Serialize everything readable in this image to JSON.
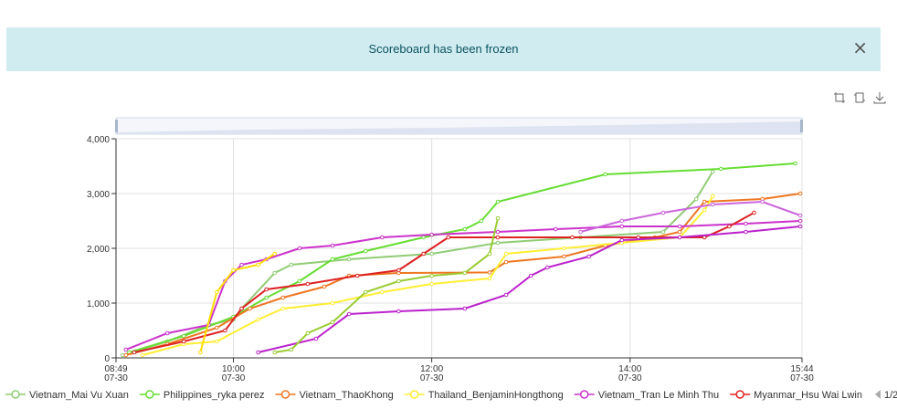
{
  "alert": {
    "message": "Scoreboard has been frozen",
    "close_glyph": "×"
  },
  "toolbox": {
    "icons": [
      "zoom-icon",
      "zoom-reset-icon",
      "download-icon"
    ]
  },
  "legend": {
    "page": "1/2"
  },
  "chart_data": {
    "type": "line",
    "xlabel": "",
    "ylabel": "",
    "ylim": [
      0,
      4000
    ],
    "xlim": [
      "07-30 08:49",
      "07-30 15:44"
    ],
    "x_ticks": [
      {
        "time": "08:49",
        "date": "07-30"
      },
      {
        "time": "10:00",
        "date": "07-30"
      },
      {
        "time": "12:00",
        "date": "07-30"
      },
      {
        "time": "14:00",
        "date": "07-30"
      },
      {
        "time": "15:44",
        "date": "07-30"
      }
    ],
    "y_ticks": [
      "0",
      "1,000",
      "2,000",
      "3,000",
      "4,000"
    ],
    "grid": true,
    "legend_position": "bottom",
    "series": [
      {
        "name": "Vietnam_Mai Vu Xuan",
        "color": "#91cc75",
        "points": [
          [
            "08:53",
            50
          ],
          [
            "09:20",
            300
          ],
          [
            "09:45",
            600
          ],
          [
            "10:00",
            700
          ],
          [
            "10:05",
            900
          ],
          [
            "10:25",
            1550
          ],
          [
            "10:35",
            1700
          ],
          [
            "11:10",
            1800
          ],
          [
            "12:00",
            1900
          ],
          [
            "12:40",
            2100
          ],
          [
            "13:30",
            2200
          ],
          [
            "14:20",
            2300
          ],
          [
            "14:40",
            2900
          ],
          [
            "14:50",
            3400
          ]
        ]
      },
      {
        "name": "Philippines_ryka perez",
        "color": "#66dd33",
        "points": [
          [
            "08:57",
            100
          ],
          [
            "09:30",
            400
          ],
          [
            "10:00",
            750
          ],
          [
            "10:20",
            1100
          ],
          [
            "10:40",
            1400
          ],
          [
            "11:00",
            1800
          ],
          [
            "11:20",
            1950
          ],
          [
            "11:55",
            2200
          ],
          [
            "12:20",
            2350
          ],
          [
            "12:30",
            2500
          ],
          [
            "12:40",
            2850
          ],
          [
            "13:45",
            3350
          ],
          [
            "14:55",
            3450
          ],
          [
            "15:40",
            3550
          ]
        ]
      },
      {
        "name": "Vietnam_ThaoKhong",
        "color": "#ee7722",
        "points": [
          [
            "08:55",
            50
          ],
          [
            "09:20",
            250
          ],
          [
            "09:50",
            550
          ],
          [
            "10:10",
            900
          ],
          [
            "10:30",
            1100
          ],
          [
            "10:55",
            1300
          ],
          [
            "11:10",
            1500
          ],
          [
            "11:40",
            1550
          ],
          [
            "12:35",
            1560
          ],
          [
            "12:45",
            1750
          ],
          [
            "13:20",
            1850
          ],
          [
            "13:45",
            2050
          ],
          [
            "14:15",
            2200
          ],
          [
            "14:30",
            2300
          ],
          [
            "14:45",
            2850
          ],
          [
            "15:20",
            2900
          ],
          [
            "15:43",
            3000
          ]
        ]
      },
      {
        "name": "Thailand_BenjaminHongthong",
        "color": "#ffee33",
        "points": [
          [
            "09:05",
            50
          ],
          [
            "09:30",
            250
          ],
          [
            "09:50",
            300
          ],
          [
            "10:15",
            700
          ],
          [
            "10:30",
            900
          ],
          [
            "11:00",
            1000
          ],
          [
            "11:30",
            1200
          ],
          [
            "12:00",
            1350
          ],
          [
            "12:35",
            1450
          ],
          [
            "12:45",
            1900
          ],
          [
            "13:20",
            2000
          ],
          [
            "13:55",
            2100
          ],
          [
            "14:30",
            2200
          ],
          [
            "14:45",
            2700
          ],
          [
            "14:50",
            2950
          ]
        ]
      },
      {
        "name": "Vietnam_Tran Le Minh Thu",
        "color": "#cc33cc",
        "points": [
          [
            "08:55",
            150
          ],
          [
            "09:20",
            450
          ],
          [
            "09:45",
            600
          ],
          [
            "09:55",
            1400
          ],
          [
            "10:05",
            1700
          ],
          [
            "10:20",
            1800
          ],
          [
            "10:40",
            2000
          ],
          [
            "11:00",
            2050
          ],
          [
            "11:30",
            2200
          ],
          [
            "12:00",
            2250
          ],
          [
            "12:40",
            2300
          ],
          [
            "13:15",
            2350
          ],
          [
            "13:55",
            2400
          ],
          [
            "14:30",
            2400
          ],
          [
            "15:10",
            2450
          ],
          [
            "15:43",
            2500
          ]
        ]
      },
      {
        "name": "Myanmar_Hsu Wai Lwin",
        "color": "#dd2222",
        "points": [
          [
            "09:00",
            100
          ],
          [
            "09:30",
            300
          ],
          [
            "09:55",
            500
          ],
          [
            "10:05",
            900
          ],
          [
            "10:20",
            1250
          ],
          [
            "10:45",
            1350
          ],
          [
            "11:15",
            1500
          ],
          [
            "11:40",
            1600
          ],
          [
            "11:55",
            1900
          ],
          [
            "12:10",
            2200
          ],
          [
            "12:40",
            2200
          ],
          [
            "13:25",
            2200
          ],
          [
            "14:05",
            2200
          ],
          [
            "14:45",
            2200
          ],
          [
            "15:00",
            2400
          ],
          [
            "15:15",
            2650
          ]
        ]
      },
      {
        "color": "#bb22cc",
        "points": [
          [
            "10:15",
            100
          ],
          [
            "10:50",
            350
          ],
          [
            "11:10",
            800
          ],
          [
            "11:40",
            850
          ],
          [
            "12:20",
            900
          ],
          [
            "12:45",
            1150
          ],
          [
            "13:00",
            1500
          ],
          [
            "13:10",
            1650
          ],
          [
            "13:35",
            1850
          ],
          [
            "13:55",
            2150
          ],
          [
            "14:30",
            2200
          ],
          [
            "15:10",
            2300
          ],
          [
            "15:43",
            2400
          ]
        ]
      },
      {
        "color": "#99cc33",
        "points": [
          [
            "10:25",
            100
          ],
          [
            "10:35",
            150
          ],
          [
            "10:45",
            450
          ],
          [
            "11:00",
            650
          ],
          [
            "11:20",
            1200
          ],
          [
            "11:40",
            1400
          ],
          [
            "12:00",
            1500
          ],
          [
            "12:20",
            1550
          ],
          [
            "12:35",
            1900
          ],
          [
            "12:40",
            2550
          ]
        ]
      },
      {
        "color": "#cc66dd",
        "points": [
          [
            "13:30",
            2300
          ],
          [
            "13:55",
            2500
          ],
          [
            "14:20",
            2650
          ],
          [
            "14:50",
            2800
          ],
          [
            "15:20",
            2850
          ],
          [
            "15:43",
            2600
          ]
        ]
      },
      {
        "color": "#ffdd00",
        "points": [
          [
            "09:40",
            100
          ],
          [
            "09:50",
            1200
          ],
          [
            "10:00",
            1600
          ],
          [
            "10:15",
            1700
          ],
          [
            "10:25",
            1900
          ]
        ]
      }
    ]
  }
}
